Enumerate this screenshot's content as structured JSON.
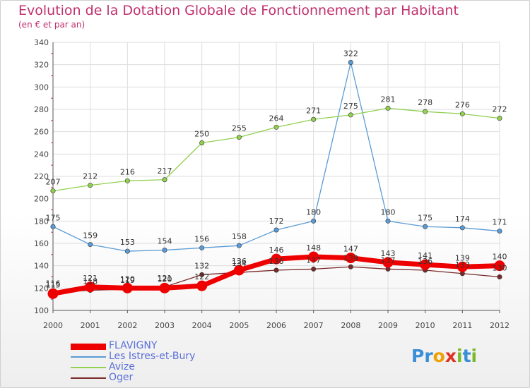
{
  "title": "Evolution de la Dotation Globale de Fonctionnement par Habitant",
  "subtitle": "(en € et par an)",
  "logo": {
    "text": "Proxiti",
    "letters": [
      {
        "ch": "P",
        "color": "#3a8fd8"
      },
      {
        "ch": "r",
        "color": "#3a8fd8"
      },
      {
        "ch": "o",
        "color": "#f0a000"
      },
      {
        "ch": "x",
        "color": "#e03020"
      },
      {
        "ch": "i",
        "color": "#7ab82a"
      },
      {
        "ch": "t",
        "color": "#3a8fd8"
      },
      {
        "ch": "i",
        "color": "#7ab82a"
      }
    ]
  },
  "chart_data": {
    "type": "line",
    "title": "Evolution de la Dotation Globale de Fonctionnement par Habitant",
    "subtitle": "(en € et par an)",
    "xlabel": "",
    "ylabel": "",
    "x": [
      "2000",
      "2001",
      "2002",
      "2003",
      "2004",
      "2005",
      "2006",
      "2007",
      "2008",
      "2009",
      "2010",
      "2011",
      "2012"
    ],
    "ylim": [
      100,
      340
    ],
    "yticks": [
      100,
      120,
      140,
      160,
      180,
      200,
      220,
      240,
      260,
      280,
      300,
      320,
      340
    ],
    "grid": true,
    "legend_position": "bottom-left",
    "series": [
      {
        "name": "FLAVIGNY",
        "color": "#ee0000",
        "highlight": true,
        "values": [
          115,
          121,
          120,
          120,
          122,
          136,
          146,
          148,
          147,
          143,
          141,
          139,
          140
        ],
        "labels": [
          "115",
          "121",
          "120",
          "120",
          "122",
          "136",
          "146",
          "148",
          "147",
          "143",
          "141",
          "139",
          "140"
        ]
      },
      {
        "name": "Les Istres-et-Bury",
        "color": "#5b9bd5",
        "highlight": false,
        "values": [
          175,
          159,
          153,
          154,
          156,
          158,
          172,
          180,
          322,
          180,
          175,
          174,
          171
        ],
        "labels": [
          "175",
          "159",
          "153",
          "154",
          "156",
          "158",
          "172",
          "180",
          "322",
          "180",
          "175",
          "174",
          "171"
        ]
      },
      {
        "name": "Avize",
        "color": "#92d050",
        "highlight": false,
        "values": [
          207,
          212,
          216,
          217,
          250,
          255,
          264,
          271,
          275,
          281,
          278,
          276,
          272
        ],
        "labels": [
          "207",
          "212",
          "216",
          "217",
          "250",
          "255",
          "264",
          "271",
          "275",
          "281",
          "278",
          "276",
          "272"
        ]
      },
      {
        "name": "Oger",
        "color": "#7a2a2a",
        "highlight": false,
        "values": [
          116,
          118,
          119,
          121,
          132,
          134,
          136,
          137,
          139,
          137,
          136,
          133,
          130
        ],
        "labels": [
          "116",
          "118",
          "119",
          "121",
          "132",
          "134",
          "136",
          "137",
          "139",
          "137",
          "136",
          "133",
          "130"
        ]
      }
    ]
  }
}
